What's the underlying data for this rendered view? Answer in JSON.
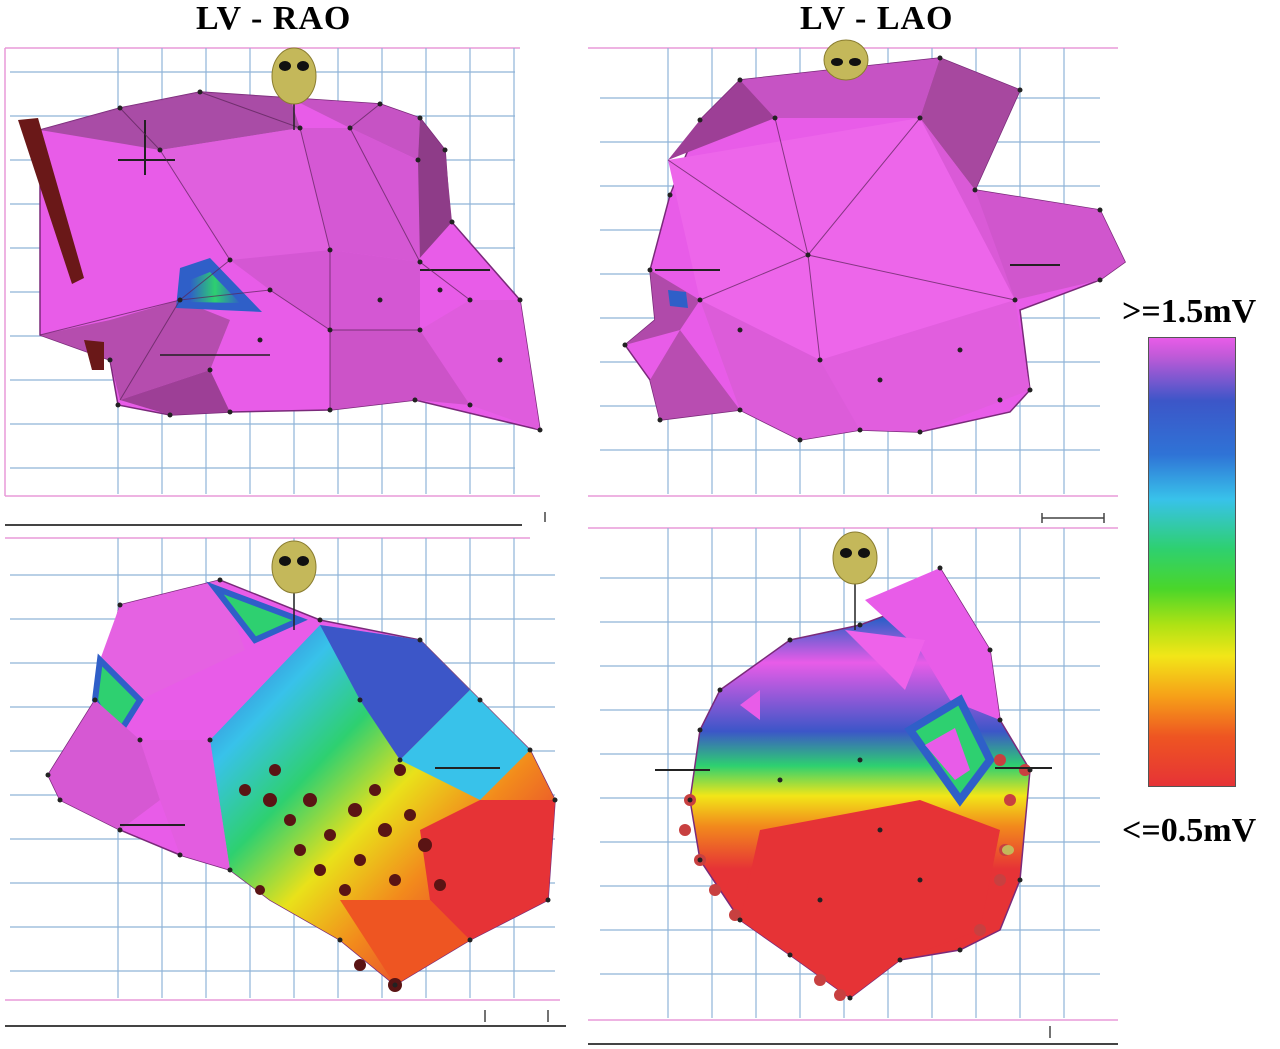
{
  "titles": {
    "rao": "LV - RAO",
    "lao": "LV - LAO"
  },
  "colorbar": {
    "max_label": ">=1.5mV",
    "min_label": "<=0.5mV",
    "max_color": "#e85ce8",
    "min_color": "#e63336"
  },
  "panels": [
    {
      "view": "RAO",
      "map": "bipolar voltage",
      "dominant": "normal (>=1.5mV)"
    },
    {
      "view": "LAO",
      "map": "bipolar voltage",
      "dominant": "normal (>=1.5mV)"
    },
    {
      "view": "RAO",
      "map": "bipolar voltage",
      "dominant": "low voltage scar"
    },
    {
      "view": "LAO",
      "map": "bipolar voltage",
      "dominant": "low voltage scar"
    }
  ],
  "colors": {
    "magenta": "#e85ce8",
    "magenta_dark": "#9a3f8e",
    "blue": "#2f5fc8",
    "green": "#2ed070",
    "red": "#e63336",
    "grid": "#8fb4d8",
    "head": "#c4b85a"
  }
}
